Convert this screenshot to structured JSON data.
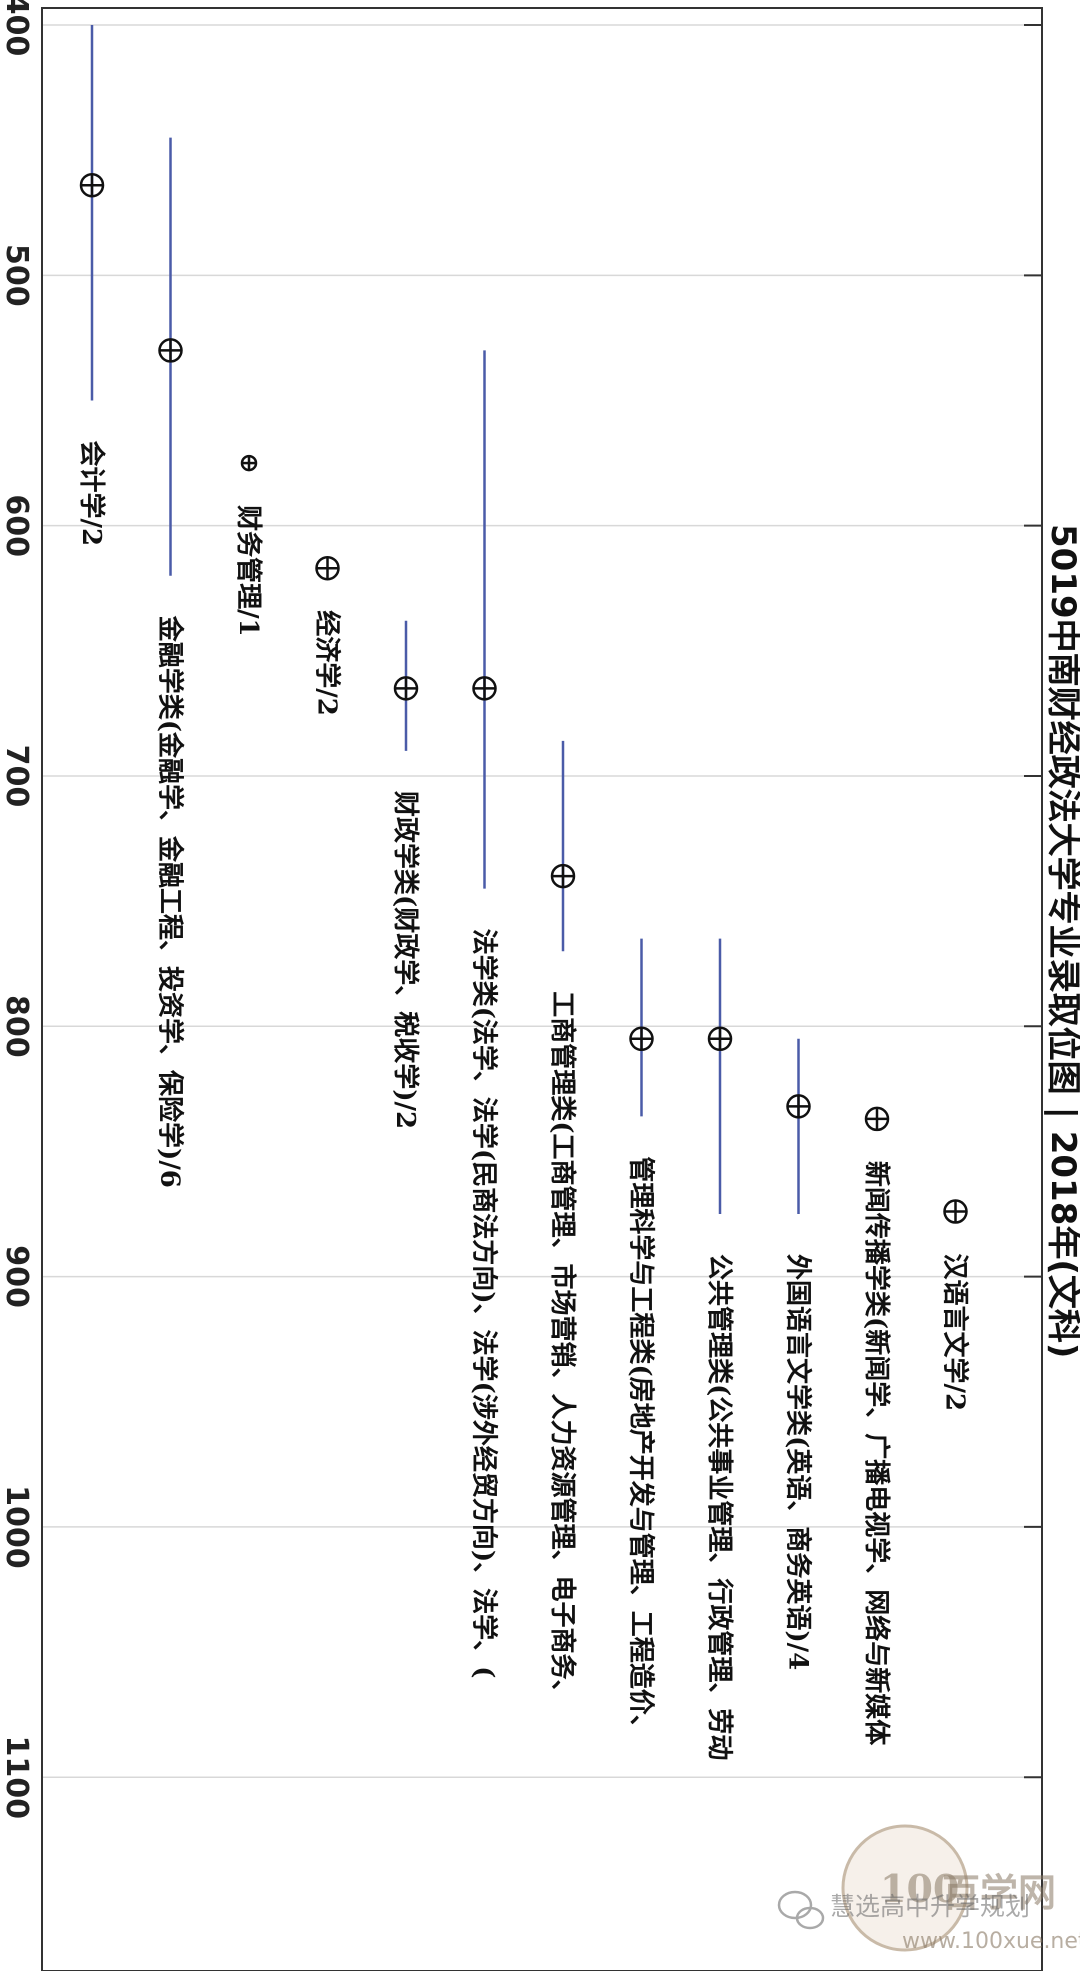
{
  "chart_data": {
    "type": "range-plot",
    "orientation": "rotated-90-clockwise",
    "title": "5019中南财经政法大学专业录取位图 | 2018年(文科)",
    "ylim": [
      400,
      1175
    ],
    "yticks": [
      400,
      500,
      600,
      700,
      800,
      900,
      1000,
      1100
    ],
    "grid": true,
    "series_color": "#4a5ba8",
    "categories": [
      "会计学/2",
      "金融学类(金融学、金融工程、投资学、保险学)/6",
      "财务管理/1",
      "经济学/2",
      "财政学类(财政学、税收学)/2",
      "法学类(法学、法学(民商法方向)、法学(涉外经贸方向)、法学、(",
      "工商管理类(工商管理、市场营销、人力资源管理、电子商务、",
      "管理科学与工程类(房地产开发与管理、工程造价、",
      "公共管理类(公共事业管理、行政管理、劳动",
      "外国语言文学类(英语、商务英语)/4",
      "新闻传播学类(新闻学、广播电视学、网络与新媒体",
      "汉语言文学/2"
    ],
    "points": [
      {
        "center": 464,
        "low": 400,
        "high": 550
      },
      {
        "center": 530,
        "low": 445,
        "high": 620
      },
      {
        "center": 575,
        "low": null,
        "high": null
      },
      {
        "center": 617,
        "low": null,
        "high": null
      },
      {
        "center": 665,
        "low": 638,
        "high": 690
      },
      {
        "center": 665,
        "low": 530,
        "high": 745
      },
      {
        "center": 740,
        "low": 686,
        "high": 770
      },
      {
        "center": 805,
        "low": 765,
        "high": 836
      },
      {
        "center": 805,
        "low": 765,
        "high": 875
      },
      {
        "center": 832,
        "low": 805,
        "high": 875
      },
      {
        "center": 837,
        "low": null,
        "high": null
      },
      {
        "center": 874,
        "low": null,
        "high": null
      }
    ]
  },
  "watermark": {
    "brand": "百学网",
    "site": "www.100xue.net",
    "handle": "慧选高中升学规划",
    "logo": "100"
  }
}
